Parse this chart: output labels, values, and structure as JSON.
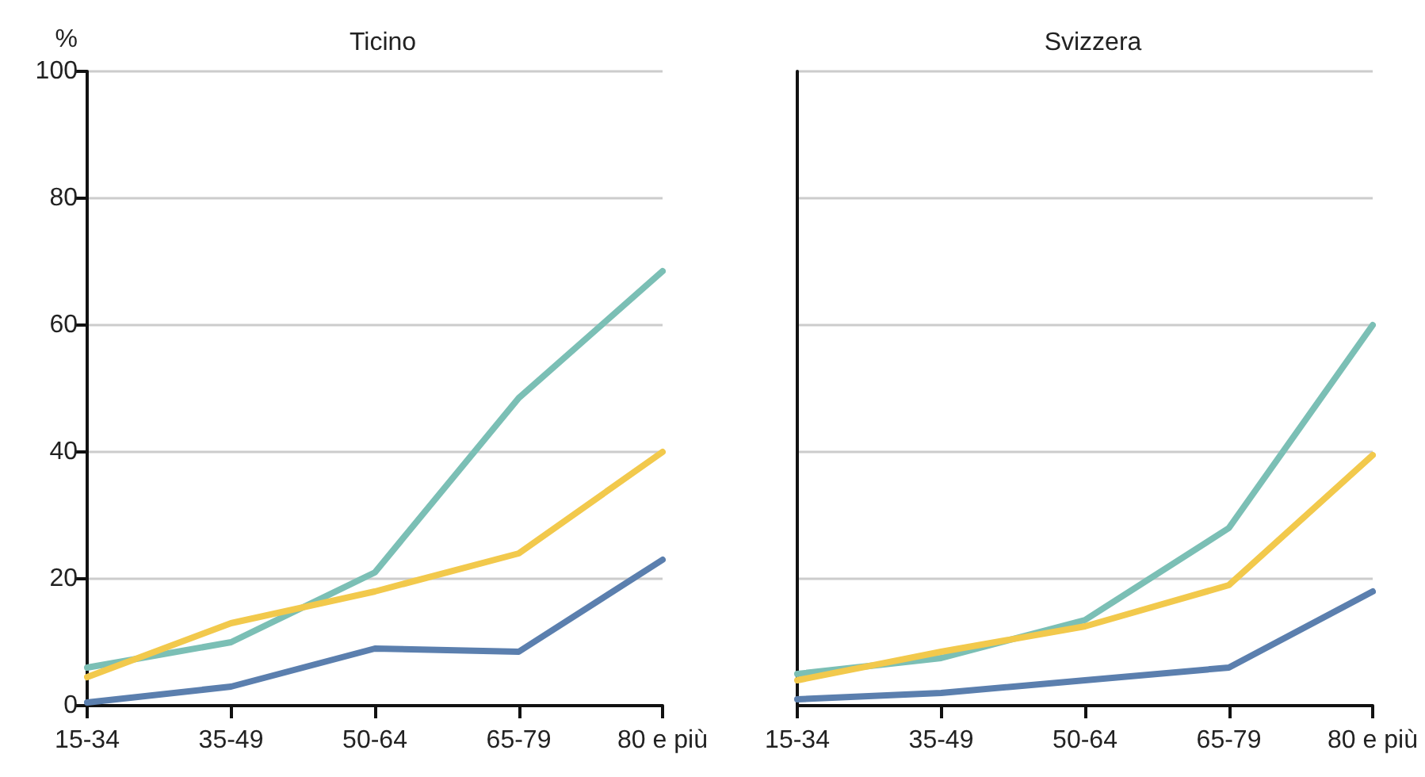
{
  "chart_data": [
    {
      "type": "line",
      "title": "Ticino",
      "ylabel": "%",
      "categories": [
        "15-34",
        "35-49",
        "50-64",
        "65-79",
        "80 e più"
      ],
      "ylim": [
        0,
        100
      ],
      "yticks": [
        0,
        20,
        40,
        60,
        80,
        100
      ],
      "grid": "y",
      "marker": "none",
      "line_style": "solid",
      "series": [
        {
          "color": "#7bbfb5",
          "values": [
            6,
            10,
            21,
            48.5,
            68.5
          ]
        },
        {
          "color": "#f2c94c",
          "values": [
            4.5,
            13,
            18,
            24,
            40
          ]
        },
        {
          "color": "#5b7fae",
          "values": [
            0.5,
            3,
            9,
            8.5,
            23
          ]
        }
      ]
    },
    {
      "type": "line",
      "title": "Svizzera",
      "categories": [
        "15-34",
        "35-49",
        "50-64",
        "65-79",
        "80 e più"
      ],
      "ylim": [
        0,
        100
      ],
      "yticks": [
        0,
        20,
        40,
        60,
        80,
        100
      ],
      "grid": "y",
      "marker": "none",
      "line_style": "solid",
      "tick_labels": "x",
      "series": [
        {
          "color": "#7bbfb5",
          "values": [
            5,
            7.5,
            13.5,
            28,
            60
          ]
        },
        {
          "color": "#f2c94c",
          "values": [
            4,
            8.5,
            12.5,
            19,
            39.5
          ]
        },
        {
          "color": "#5b7fae",
          "values": [
            1,
            2,
            4,
            6,
            18
          ]
        }
      ]
    }
  ]
}
